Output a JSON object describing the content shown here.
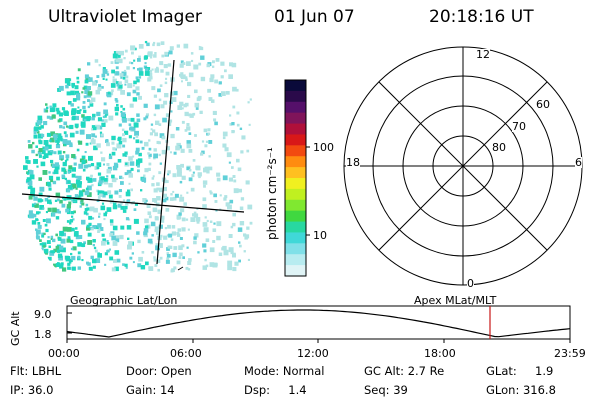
{
  "header": {
    "instrument": "Ultraviolet Imager",
    "date": "01 Jun 07",
    "time": "20:18:16 UT"
  },
  "colorbar": {
    "unit": "photon cm⁻²s⁻¹",
    "ticks": [
      "100",
      "10"
    ],
    "colors": [
      "#0a0a3a",
      "#2a0a4a",
      "#55106a",
      "#80145a",
      "#b0103a",
      "#d81818",
      "#f24a10",
      "#ff8c10",
      "#ffc020",
      "#f0f020",
      "#c0f020",
      "#80e830",
      "#40d840",
      "#28d8a0",
      "#40d8d8",
      "#80e0e8",
      "#b8ecf0",
      "#e0f4f6"
    ]
  },
  "geo_map": {
    "label": "Geographic Lat/Lon",
    "image_colors": {
      "dense": "#20d8c0",
      "mid": "#60d0d8",
      "light": "#b0e4e4",
      "green": "#40c880"
    }
  },
  "polar_plot": {
    "label": "Apex MLat/MLT",
    "mlt_labels": {
      "top": "12",
      "left": "18",
      "right": "6",
      "bottom": "0"
    },
    "lat_labels": [
      "60",
      "70",
      "80"
    ]
  },
  "altitude_plot": {
    "ylabel": "GC Alt",
    "yticks": [
      "9.0",
      "1.8"
    ],
    "xticks": [
      "00:00",
      "06:00",
      "12:00",
      "18:00",
      "23:59"
    ],
    "marker_color": "#c81818"
  },
  "info": {
    "flt": "Flt: LBHL",
    "ip": "IP: 36.0",
    "door": "Door: Open",
    "gain": "Gain: 14",
    "mode": "Mode: Normal",
    "dsp": "Dsp:     1.4",
    "gc_alt": "GC Alt: 2.7 Re",
    "seq": "Seq: 39",
    "glat": "GLat:     1.9",
    "glon": "GLon: 316.8"
  }
}
